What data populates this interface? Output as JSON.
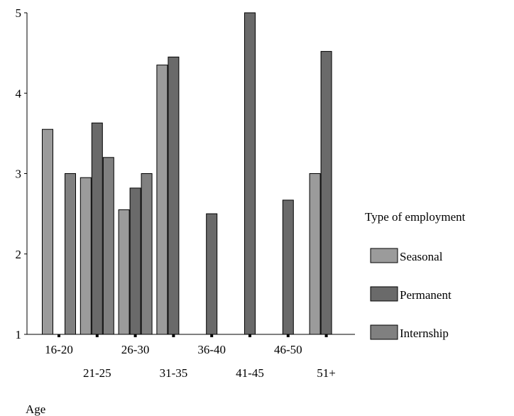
{
  "chart_data": {
    "type": "bar",
    "xlabel": "Age",
    "ylabel": "",
    "ylim": [
      1,
      5
    ],
    "yticks": [
      1,
      2,
      3,
      4,
      5
    ],
    "categories": [
      "16-20",
      "21-25",
      "26-30",
      "31-35",
      "36-40",
      "41-45",
      "46-50",
      "51+"
    ],
    "series": [
      {
        "name": "Seasonal",
        "color": "#9b9b9b",
        "values": [
          3.55,
          2.95,
          2.55,
          4.35,
          null,
          null,
          null,
          3.0
        ]
      },
      {
        "name": "Permanent",
        "color": "#6a6a6a",
        "values": [
          null,
          3.63,
          2.82,
          4.45,
          2.5,
          5.0,
          2.67,
          4.52
        ]
      },
      {
        "name": "Internship",
        "color": "#808080",
        "values": [
          3.0,
          3.2,
          3.0,
          null,
          null,
          null,
          null,
          null
        ]
      }
    ],
    "legend": {
      "title": "Type of employment",
      "position": "right"
    },
    "grid": false
  }
}
